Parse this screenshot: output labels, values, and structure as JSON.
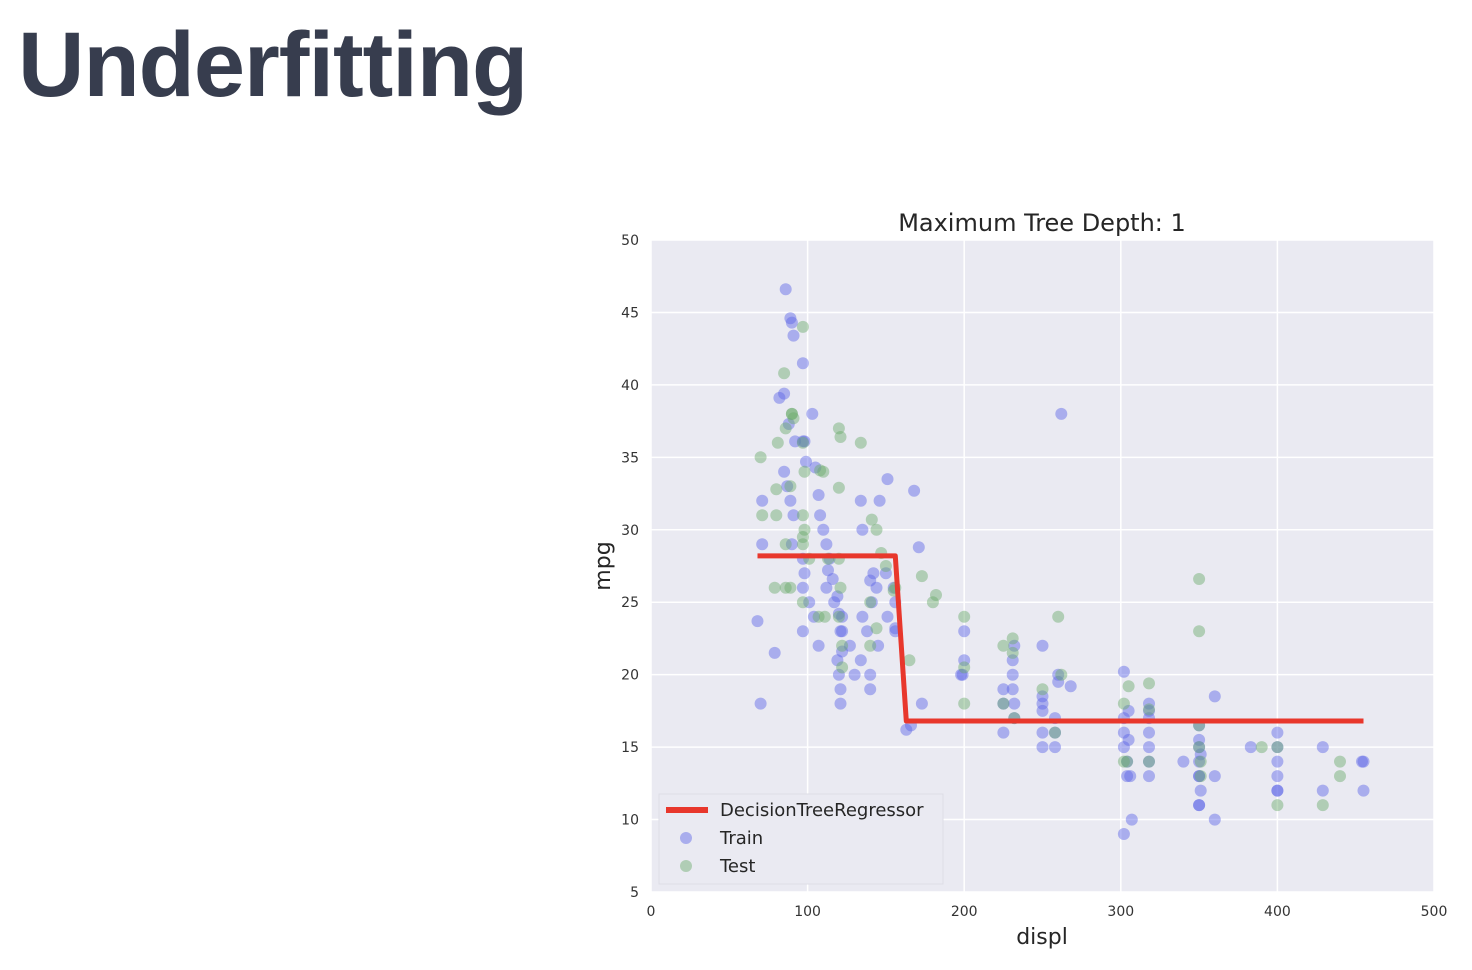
{
  "slide": {
    "title": "Underfitting"
  },
  "chart_data": {
    "type": "scatter",
    "title": "Maximum Tree Depth: 1",
    "xlabel": "displ",
    "ylabel": "mpg",
    "xlim": [
      0,
      500
    ],
    "ylim": [
      5,
      50
    ],
    "xticks": [
      0,
      100,
      200,
      300,
      400,
      500
    ],
    "yticks": [
      5,
      10,
      15,
      20,
      25,
      30,
      35,
      40,
      45,
      50
    ],
    "grid": true,
    "legend_position": "lower-left",
    "legend": [
      "DecisionTreeRegressor",
      "Train",
      "Test"
    ],
    "colors": {
      "background": "#eaeaf2",
      "grid": "#ffffff",
      "line": "#e8372c",
      "train": "#5a64e6",
      "test": "#6aaa6a"
    },
    "series": [
      {
        "name": "DecisionTreeRegressor",
        "kind": "line",
        "x": [
          68,
          156,
          163,
          455
        ],
        "y": [
          28.2,
          28.2,
          16.8,
          16.8
        ]
      },
      {
        "name": "Train",
        "kind": "scatter",
        "x": [
          86,
          89,
          90,
          91,
          97,
          98,
          85,
          82,
          88,
          92,
          97,
          99,
          103,
          105,
          107,
          108,
          110,
          112,
          113,
          116,
          119,
          120,
          121,
          122,
          140,
          141,
          145,
          151,
          156,
          168,
          171,
          70,
          68,
          79,
          71,
          71,
          85,
          87,
          89,
          91,
          90,
          97,
          98,
          97,
          97,
          101,
          104,
          107,
          112,
          114,
          117,
          119,
          120,
          121,
          121,
          122,
          122,
          127,
          130,
          134,
          135,
          138,
          140,
          140,
          142,
          144,
          146,
          150,
          151,
          155,
          156,
          156,
          163,
          166,
          173,
          135,
          134,
          250,
          250,
          250,
          250,
          225,
          225,
          225,
          231,
          231,
          231,
          232,
          232,
          232,
          250,
          258,
          258,
          258,
          250,
          200,
          199,
          200,
          198,
          260,
          260,
          268,
          262,
          302,
          302,
          302,
          302,
          304,
          304,
          305,
          305,
          306,
          307,
          302,
          318,
          318,
          318,
          318,
          318,
          318,
          318,
          350,
          350,
          350,
          350,
          350,
          350,
          351,
          351,
          350,
          350,
          360,
          360,
          360,
          340,
          400,
          400,
          400,
          400,
          400,
          383,
          400,
          429,
          429,
          455,
          455,
          454
        ],
        "y": [
          46.6,
          44.6,
          44.3,
          43.4,
          41.5,
          36.1,
          39.4,
          39.1,
          37.3,
          36.1,
          36.1,
          34.7,
          38.0,
          34.3,
          32.4,
          31.0,
          30.0,
          29.0,
          27.2,
          26.6,
          25.4,
          24.2,
          23.0,
          21.6,
          26.5,
          25.0,
          22.0,
          33.5,
          23.2,
          32.7,
          28.8,
          18.0,
          23.7,
          21.5,
          32.0,
          29.0,
          34.0,
          33.0,
          32.0,
          31.0,
          29.0,
          28.0,
          27.0,
          26.0,
          23.0,
          25.0,
          24.0,
          22.0,
          26.0,
          28.0,
          25.0,
          21.0,
          20.0,
          19.0,
          18.0,
          24.0,
          23.0,
          22.0,
          20.0,
          21.0,
          24.0,
          23.0,
          20.0,
          19.0,
          27.0,
          26.0,
          32.0,
          27.0,
          24.0,
          26.0,
          25.0,
          23.0,
          16.2,
          16.5,
          18.0,
          30.0,
          32.0,
          22.0,
          18.5,
          17.5,
          16.0,
          16.0,
          18.0,
          19.0,
          21.0,
          20.0,
          19.0,
          18.0,
          17.0,
          22.0,
          15.0,
          16.0,
          15.0,
          17.0,
          18.0,
          23.0,
          20.0,
          21.0,
          20.0,
          19.5,
          20.0,
          19.2,
          38.0,
          20.2,
          17.0,
          16.0,
          15.0,
          14.0,
          13.0,
          15.5,
          17.5,
          13.0,
          10.0,
          9.0,
          16.0,
          18.0,
          17.5,
          17.0,
          15.0,
          14.0,
          13.0,
          11.0,
          16.5,
          15.5,
          15.0,
          14.0,
          13.0,
          12.0,
          14.5,
          13.0,
          11.0,
          18.5,
          13.0,
          10.0,
          14.0,
          16.0,
          15.0,
          14.0,
          13.0,
          12.0,
          15.0,
          12.0,
          15.0,
          12.0,
          14.0,
          12.0,
          14.0
        ],
        "color": "#5a64e6"
      },
      {
        "name": "Test",
        "kind": "scatter",
        "x": [
          97,
          90,
          85,
          91,
          97,
          81,
          80,
          98,
          98,
          108,
          110,
          120,
          121,
          120,
          134,
          141,
          144,
          147,
          150,
          156,
          165,
          173,
          180,
          182,
          200,
          200,
          200,
          225,
          225,
          231,
          231,
          232,
          250,
          258,
          260,
          262,
          302,
          302,
          305,
          318,
          318,
          318,
          350,
          350,
          350,
          351,
          351,
          390,
          400,
          400,
          429,
          440,
          440,
          120,
          120,
          121,
          140,
          155,
          86,
          79,
          70,
          71,
          89,
          97,
          97,
          97,
          101,
          107,
          111,
          113,
          122,
          122,
          140,
          144,
          97,
          86,
          90,
          89,
          80,
          86,
          304,
          350
        ],
        "y": [
          44.0,
          38.0,
          40.8,
          37.7,
          36.0,
          36.0,
          32.8,
          34.0,
          30.0,
          34.1,
          34.0,
          37.0,
          36.4,
          32.9,
          36.0,
          30.7,
          30.0,
          28.4,
          27.5,
          26.0,
          21.0,
          26.8,
          25.0,
          25.5,
          24.0,
          20.5,
          18.0,
          22.0,
          18.0,
          22.5,
          21.5,
          17.0,
          19.0,
          16.0,
          24.0,
          20.0,
          18.0,
          14.0,
          19.2,
          19.4,
          17.6,
          14.0,
          26.6,
          23.0,
          16.5,
          14.0,
          13.0,
          15.0,
          15.0,
          11.0,
          11.0,
          14.0,
          13.0,
          28.0,
          24.0,
          26.0,
          25.0,
          25.8,
          37.0,
          26.0,
          35.0,
          31.0,
          26.0,
          25.0,
          29.0,
          31.0,
          28.0,
          24.0,
          24.0,
          28.0,
          22.0,
          20.5,
          22.0,
          23.2,
          29.5,
          29.0,
          38.0,
          33.0,
          31.0,
          26.0,
          14.0,
          15.0
        ],
        "color": "#6aaa6a"
      }
    ]
  }
}
